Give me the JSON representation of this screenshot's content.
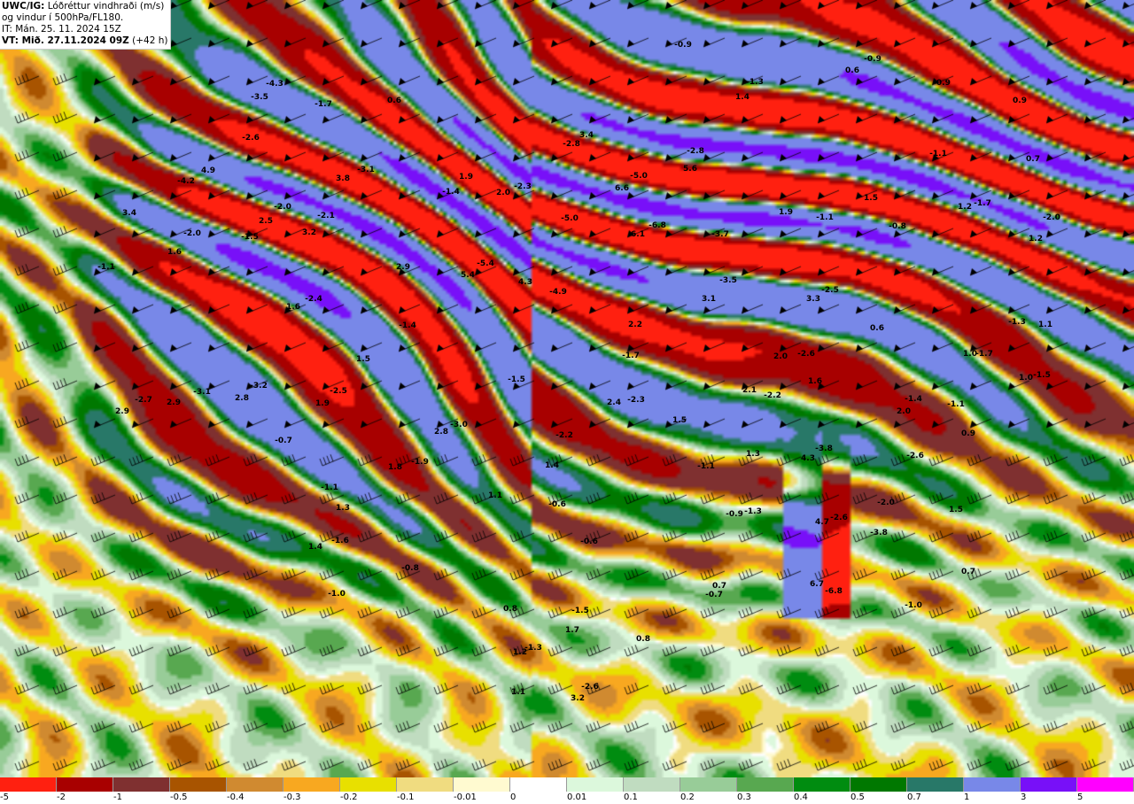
{
  "header": {
    "product_code": "UWC/IG:",
    "product_name": "Lóðréttur vindhraði (m/s)",
    "line2": "og vindur í 500hPa/FL180.",
    "issue_time": "IT: Mán. 25. 11. 2024 15Z",
    "valid_label": "VT: Mið. 27.11.2024 09Z",
    "lead_time": "(+42 h)"
  },
  "legend": {
    "thresholds": [
      "-5",
      "-2",
      "-1",
      "-0.5",
      "-0.4",
      "-0.3",
      "-0.2",
      "-0.1",
      "-0.01",
      "0",
      "0.01",
      "0.1",
      "0.2",
      "0.3",
      "0.4",
      "0.5",
      "0.7",
      "1",
      "3",
      "5"
    ],
    "colors": [
      "#ff2010",
      "#a80000",
      "#7f3030",
      "#a85400",
      "#d08a30",
      "#f8a820",
      "#e8e000",
      "#f0dc80",
      "#fffad0",
      "#ffffff",
      "#dcf8dc",
      "#c0dcc0",
      "#98cc98",
      "#58a850",
      "#008c10",
      "#007800",
      "#287868",
      "#7888e8",
      "#7810f8",
      "#ff00ff"
    ]
  },
  "map_labels": [
    "-4.3",
    "-3.5",
    "-1.7",
    "0.6",
    "-2.6",
    "-3.1",
    "3.8",
    "-4.2",
    "4.9",
    "3.4",
    "-2.0",
    "2.5",
    "-2.1",
    "3.2",
    "-2.0",
    "-1.5",
    "1.6",
    "-0.9",
    "3.4",
    "-2.8",
    "1.9",
    "-1.4",
    "2.0",
    "-2.3",
    "6.6",
    "-5.0",
    "5.6",
    "-2.8",
    "-1.3",
    "1.4",
    "-5.0",
    "6.1",
    "-6.8",
    "-3.7",
    "-5.4",
    "-0.9",
    "0.6",
    "-0.9",
    "0.9",
    "-1.1",
    "0.7",
    "1.5",
    "1.9",
    "-1.1",
    "-0.8",
    "1.2",
    "-1.7",
    "-2.0",
    "1.2",
    "-1.1",
    "2.9",
    "1.6",
    "-2.4",
    "-1.4",
    "1.5",
    "-3.2",
    "-3.1",
    "-2.5",
    "-2.7",
    "2.9",
    "2.8",
    "1.9",
    "2.9",
    "-0.7",
    "5.4",
    "4.3",
    "-4.9",
    "-3.5",
    "3.1",
    "2.2",
    "-1.7",
    "-1.5",
    "2.4",
    "-2.3",
    "2.1",
    "1.5",
    "-3.0",
    "2.8",
    "-2.2",
    "1.3",
    "-2.5",
    "3.3",
    "0.6",
    "-1.3",
    "1.1",
    "2.0",
    "-2.6",
    "1.0",
    "-1.7",
    "1.6",
    "1.0",
    "-1.5",
    "-2.2",
    "-1.4",
    "-1.1",
    "2.0",
    "0.9",
    "-3.8",
    "4.3",
    "-2.6",
    "-1.9",
    "1.8",
    "1.4",
    "-1.1",
    "1.1",
    "-0.6",
    "1.3",
    "-1.6",
    "-0.6",
    "1.4",
    "-0.8",
    "-1.0",
    "0.8",
    "-1.5",
    "1.7",
    "1.2",
    "-1.3",
    "0.8",
    "-2.6",
    "3.2",
    "1.1",
    "-1.1",
    "-0.9",
    "-1.3",
    "1.5",
    "-2.6",
    "4.7",
    "-2.0",
    "-3.8",
    "-0.7",
    "0.7",
    "6.7",
    "-6.8",
    "0.7",
    "-1.0"
  ]
}
